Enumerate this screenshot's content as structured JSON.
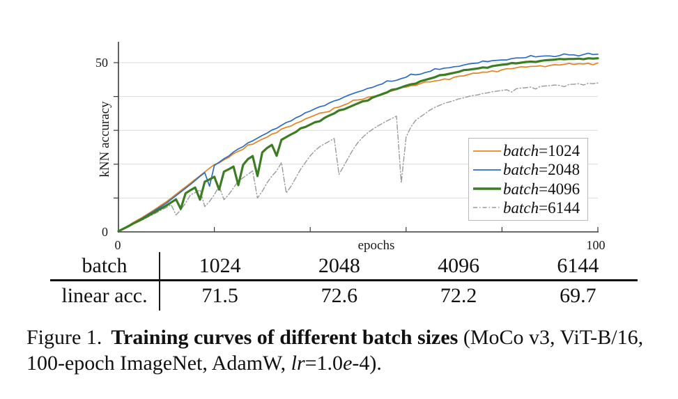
{
  "chart_data": {
    "type": "line",
    "title": "",
    "xlabel": "epochs",
    "ylabel": "kNN accuracy",
    "xlim": [
      0,
      100
    ],
    "ylim": [
      0,
      56
    ],
    "xticks": [
      0,
      20,
      40,
      60,
      80,
      100
    ],
    "xtick_labels": [
      "0",
      "100"
    ],
    "ytick_labels": [
      "0",
      "50"
    ],
    "gridlines_y": [
      10,
      20,
      30,
      40,
      50
    ],
    "grid": "horizontal light-gray gridlines, left and bottom spines only",
    "legend_position": "lower-right",
    "x_start": 0,
    "x_step": 1,
    "series": [
      {
        "name": "batch=1024",
        "legend_prefix": "batch",
        "legend_suffix": "=1024",
        "color": "#E8821E",
        "line_style": "solid",
        "line_width": 1.7,
        "values": [
          0.2,
          1.0,
          1.8,
          2.7,
          3.5,
          4.3,
          5.2,
          6.1,
          7.0,
          8.0,
          8.9,
          10.0,
          11.1,
          12.2,
          13.3,
          14.4,
          15.5,
          16.6,
          17.7,
          18.8,
          19.9,
          20.4,
          21.3,
          22.0,
          23.1,
          23.8,
          24.4,
          25.7,
          25.9,
          26.7,
          27.4,
          28.0,
          28.9,
          29.3,
          30.4,
          30.9,
          31.3,
          32.1,
          32.6,
          33.4,
          33.9,
          34.5,
          35.1,
          35.3,
          35.6,
          36.6,
          36.9,
          37.5,
          38.0,
          38.9,
          39.0,
          39.2,
          39.8,
          40.0,
          40.2,
          40.9,
          41.4,
          41.6,
          42.1,
          42.7,
          42.8,
          43.2,
          43.3,
          43.8,
          44.3,
          44.3,
          44.6,
          44.8,
          45.2,
          45.0,
          45.7,
          46.0,
          46.1,
          46.5,
          46.9,
          46.9,
          47.2,
          47.2,
          47.6,
          47.3,
          47.9,
          48.2,
          48.2,
          48.5,
          48.8,
          48.7,
          48.9,
          48.9,
          49.1,
          48.8,
          49.2,
          49.4,
          49.3,
          49.5,
          49.8,
          49.5,
          49.7,
          49.6,
          49.8,
          49.4,
          49.9
        ]
      },
      {
        "name": "batch=2048",
        "legend_prefix": "batch",
        "legend_suffix": "=2048",
        "color": "#2B6CC4",
        "line_style": "solid",
        "line_width": 1.7,
        "values": [
          0.2,
          0.9,
          1.7,
          2.5,
          3.3,
          4.1,
          5.0,
          5.8,
          6.7,
          7.6,
          8.5,
          9.6,
          10.7,
          11.8,
          12.9,
          14.0,
          15.2,
          16.4,
          17.5,
          13.5,
          19.6,
          20.6,
          21.6,
          22.4,
          23.6,
          24.5,
          25.2,
          26.3,
          26.9,
          27.7,
          28.5,
          29.2,
          30.1,
          30.6,
          31.5,
          32.3,
          32.8,
          33.7,
          34.3,
          35.2,
          35.7,
          36.4,
          37.0,
          37.3,
          38.1,
          38.7,
          39.1,
          39.8,
          40.4,
          40.9,
          41.4,
          41.8,
          42.4,
          42.7,
          43.3,
          43.7,
          44.6,
          44.5,
          44.8,
          45.3,
          45.7,
          46.6,
          46.4,
          46.6,
          47.1,
          47.4,
          48.2,
          48.0,
          48.4,
          48.5,
          48.8,
          48.9,
          49.3,
          49.6,
          49.8,
          49.9,
          50.5,
          50.3,
          50.6,
          50.7,
          50.8,
          50.8,
          51.2,
          51.4,
          51.4,
          51.5,
          52.1,
          51.7,
          51.9,
          52.0,
          52.0,
          51.8,
          52.1,
          52.6,
          52.3,
          52.3,
          52.0,
          52.4,
          52.8,
          52.4,
          52.5
        ]
      },
      {
        "name": "batch=4096",
        "legend_prefix": "batch",
        "legend_suffix": "=4096",
        "color": "#3B7D23",
        "line_style": "solid",
        "line_width": 3.2,
        "values": [
          0.2,
          0.9,
          1.6,
          2.4,
          3.1,
          3.8,
          4.6,
          5.4,
          6.2,
          7.0,
          7.8,
          8.7,
          9.6,
          6.8,
          11.4,
          12.3,
          13.1,
          9.5,
          14.8,
          15.5,
          16.3,
          12.5,
          17.8,
          18.5,
          19.3,
          13.8,
          19.8,
          21.5,
          22.4,
          16.5,
          23.5,
          24.8,
          25.7,
          22.5,
          27.2,
          28.0,
          28.8,
          29.5,
          30.6,
          31.0,
          31.7,
          32.4,
          32.7,
          33.7,
          34.4,
          35.0,
          35.9,
          36.2,
          36.8,
          37.4,
          38.0,
          38.6,
          38.8,
          39.7,
          40.2,
          40.7,
          41.2,
          42.0,
          42.2,
          42.7,
          43.2,
          43.6,
          43.8,
          44.5,
          44.9,
          45.3,
          45.7,
          46.3,
          46.4,
          46.7,
          47.0,
          47.3,
          47.8,
          47.9,
          48.1,
          48.3,
          48.6,
          48.5,
          49.0,
          49.2,
          49.4,
          49.5,
          49.9,
          49.8,
          50.0,
          50.2,
          50.3,
          50.2,
          50.5,
          50.7,
          50.8,
          50.9,
          51.1,
          51.0,
          51.1,
          51.1,
          51.2,
          51.0,
          51.3,
          51.2,
          51.3
        ]
      },
      {
        "name": "batch=6144",
        "legend_prefix": "batch",
        "legend_suffix": "=6144",
        "color": "#999999",
        "line_style": "dashdot",
        "line_width": 1.4,
        "values": [
          0.2,
          0.8,
          1.5,
          2.2,
          2.9,
          3.5,
          4.3,
          5.0,
          5.7,
          6.5,
          7.2,
          8.0,
          5.0,
          6.5,
          8.5,
          10.9,
          11.6,
          12.4,
          7.5,
          9.0,
          11.0,
          13.5,
          9.5,
          11.0,
          13.0,
          15.0,
          16.0,
          17.0,
          18.0,
          10.0,
          12.0,
          14.5,
          16.5,
          18.0,
          20.5,
          11.5,
          13.5,
          16.0,
          18.5,
          20.5,
          22.5,
          24.0,
          25.2,
          26.0,
          26.8,
          27.6,
          17.0,
          19.5,
          22.0,
          24.5,
          26.5,
          28.0,
          29.3,
          30.3,
          31.2,
          32.0,
          32.8,
          33.5,
          34.2,
          14.5,
          28.0,
          31.0,
          33.0,
          34.0,
          35.0,
          36.0,
          36.8,
          37.4,
          38.0,
          38.4,
          38.8,
          39.3,
          39.6,
          40.0,
          40.3,
          40.5,
          40.9,
          41.1,
          41.4,
          41.6,
          41.8,
          42.0,
          41.3,
          42.3,
          42.5,
          42.6,
          42.8,
          42.2,
          43.0,
          43.1,
          43.2,
          43.4,
          43.3,
          42.9,
          43.6,
          43.6,
          43.8,
          43.4,
          43.9,
          43.8,
          44.0
        ]
      }
    ]
  },
  "table": {
    "rows": [
      {
        "label": "batch",
        "values": [
          "1024",
          "2048",
          "4096",
          "6144"
        ]
      },
      {
        "label": "linear acc.",
        "values": [
          "71.5",
          "72.6",
          "72.2",
          "69.7"
        ]
      }
    ]
  },
  "caption": {
    "figure_label": "Figure 1.",
    "bold_text": "Training curves of different batch sizes",
    "text_after_bold": " (MoCo v3, ViT-B/16, 100-epoch ImageNet, AdamW, ",
    "lr_italic": "lr",
    "equals_value": "=1.0",
    "e_italic": "e",
    "tail": "-4)."
  }
}
